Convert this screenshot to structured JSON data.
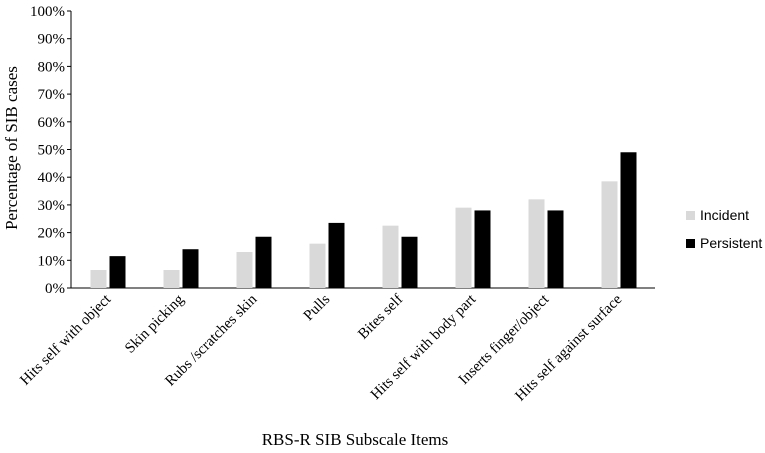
{
  "chart_data": {
    "type": "bar",
    "title": "",
    "xlabel": "RBS-R SIB Subscale Items",
    "ylabel": "Percentage of SIB cases",
    "ylim": [
      0,
      100
    ],
    "y_ticks": [
      "0%",
      "10%",
      "20%",
      "30%",
      "40%",
      "50%",
      "60%",
      "70%",
      "80%",
      "90%",
      "100%"
    ],
    "grid": false,
    "legend_position": "right",
    "categories": [
      "Hits self with object",
      "Skin picking",
      "Rubs /scratches skin",
      "Pulls",
      "Bites self",
      "Hits self with body part",
      "Inserts finger/object",
      "Hits self against surface"
    ],
    "series": [
      {
        "name": "Incident",
        "color": "#d9d9d9",
        "values": [
          6.5,
          6.5,
          13,
          16,
          22.5,
          29,
          32,
          38.5
        ]
      },
      {
        "name": "Persistent",
        "color": "#000000",
        "values": [
          11.5,
          14,
          18.5,
          23.5,
          18.5,
          28,
          28,
          49
        ]
      }
    ]
  }
}
